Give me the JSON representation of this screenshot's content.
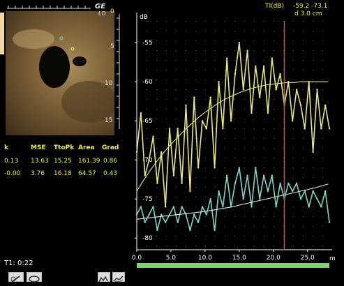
{
  "ultrasound": {
    "logo": "GE",
    "logo_sub": "LD",
    "depth_ticks": [
      "0",
      "5",
      "10",
      "15"
    ]
  },
  "tic_header": {
    "title": "TI(dB)",
    "values": "-59.2  -73.1",
    "depth": "d 3.0 cm"
  },
  "fit_table": {
    "headers": [
      "k",
      "MSE",
      "TtoPk",
      "Area",
      "Grad"
    ],
    "rows": [
      [
        "0.13",
        "13.63",
        "15.25",
        "161.39",
        "0.86"
      ],
      [
        "-0.00",
        "3.76",
        "16.18",
        "64.57",
        "0.43"
      ]
    ],
    "row_colors": [
      "#f0f040",
      "#f0f040"
    ]
  },
  "status": {
    "time": "T1: 0:22"
  },
  "toolbar": {
    "buttons": [
      "pencil-icon",
      "ellipse-icon",
      "curve-select-icon",
      "curve-compare-icon"
    ]
  },
  "colors": {
    "series_yellow": "#e8e87a",
    "series_cyan": "#7fd6c8",
    "cursor": "#c94a5a",
    "timebar": "#7ed26a"
  },
  "chart_data": {
    "type": "line",
    "ylabel": "dB",
    "y_ticks": [
      "-55",
      "-60",
      "-65",
      "-70",
      "-75",
      "-80"
    ],
    "x_ticks": [
      "0.0",
      "5.0",
      "10.0",
      "15.0",
      "20.0",
      "25.0"
    ],
    "xlim": [
      0,
      28.6
    ],
    "ylim": [
      -81.5,
      -51.5
    ],
    "cursor_x": 21.6,
    "series": [
      {
        "color": "#e8e87a",
        "x": [
          0,
          0.6,
          1.2,
          1.8,
          2.4,
          3.0,
          3.6,
          4.2,
          4.8,
          5.4,
          6.0,
          6.6,
          7.2,
          7.8,
          8.4,
          9.0,
          9.6,
          10.2,
          10.8,
          11.4,
          12.0,
          12.6,
          13.2,
          13.8,
          14.4,
          15.0,
          15.6,
          16.2,
          16.8,
          17.4,
          18.0,
          18.6,
          19.2,
          19.8,
          20.4,
          21.0,
          21.6,
          22.2,
          22.8,
          23.4,
          24.0,
          24.6,
          25.2,
          25.8,
          26.4,
          27.0,
          27.6,
          28.2
        ],
        "y": [
          -69,
          -64,
          -72,
          -70,
          -67,
          -73,
          -69,
          -76,
          -66,
          -72,
          -66,
          -73,
          -63,
          -74,
          -62,
          -71,
          -65,
          -66,
          -62,
          -71,
          -60,
          -66,
          -57,
          -65,
          -59,
          -55,
          -61,
          -56,
          -64,
          -58,
          -62,
          -58,
          -64,
          -57,
          -61,
          -59,
          -63,
          -60,
          -65,
          -61,
          -63,
          -66,
          -60,
          -69,
          -61,
          -66,
          -63,
          -66
        ]
      },
      {
        "color": "#7fd6c8",
        "x": [
          0,
          0.6,
          1.2,
          1.8,
          2.4,
          3.0,
          3.6,
          4.2,
          4.8,
          5.4,
          6.0,
          6.6,
          7.2,
          7.8,
          8.4,
          9.0,
          9.6,
          10.2,
          10.8,
          11.4,
          12.0,
          12.6,
          13.2,
          13.8,
          14.4,
          15.0,
          15.6,
          16.2,
          16.8,
          17.4,
          18.0,
          18.6,
          19.2,
          19.8,
          20.4,
          21.0,
          21.6,
          22.2,
          22.8,
          23.4,
          24.0,
          24.6,
          25.2,
          25.8,
          26.4,
          27.0,
          27.6,
          28.2
        ],
        "y": [
          -77,
          -76,
          -78,
          -77,
          -76,
          -79,
          -77,
          -78,
          -77,
          -76,
          -78,
          -76,
          -77,
          -79,
          -77,
          -78,
          -76,
          -77,
          -75,
          -79,
          -74,
          -76,
          -72,
          -76,
          -73,
          -71,
          -75,
          -72,
          -76,
          -71,
          -75,
          -72,
          -74,
          -72,
          -76,
          -73,
          -75,
          -73,
          -74,
          -73,
          -75,
          -74,
          -76,
          -74,
          -75,
          -76,
          -74,
          -78
        ]
      },
      {
        "color": "#e8e87a",
        "x": [
          0,
          1,
          2,
          3,
          4,
          5,
          6,
          7,
          8,
          9,
          10,
          11,
          12,
          13,
          14,
          15,
          16,
          17,
          18,
          19,
          20,
          21,
          22,
          23,
          24,
          25,
          26,
          27,
          28
        ],
        "y": [
          -74,
          -72.6,
          -71.3,
          -70.1,
          -69,
          -68,
          -67.1,
          -66.2,
          -65.4,
          -64.6,
          -63.9,
          -63.3,
          -62.7,
          -62.2,
          -61.8,
          -61.4,
          -61.1,
          -60.8,
          -60.6,
          -60.4,
          -60.3,
          -60.2,
          -60.1,
          -60.1,
          -60,
          -60,
          -60,
          -60,
          -60
        ]
      },
      {
        "color": "#c9f0ea",
        "x": [
          0,
          2,
          4,
          6,
          8,
          10,
          12,
          14,
          16,
          18,
          20,
          22,
          24,
          26,
          28
        ],
        "y": [
          -77.6,
          -77.4,
          -77.2,
          -77,
          -76.8,
          -76.6,
          -76.3,
          -76,
          -75.6,
          -75.2,
          -74.8,
          -74.4,
          -74,
          -73.6,
          -73.1
        ]
      }
    ]
  }
}
